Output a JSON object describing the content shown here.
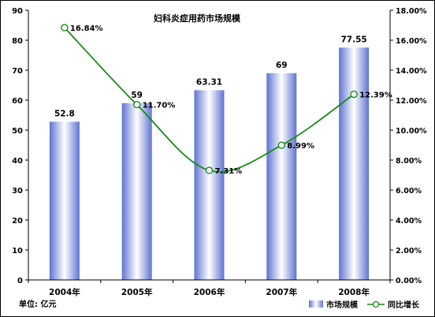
{
  "chart_data": {
    "type": "bar",
    "title": "妇科炎症用药市场规模",
    "unit_label": "单位: 亿元",
    "categories": [
      "2004年",
      "2005年",
      "2006年",
      "2007年",
      "2008年"
    ],
    "series": [
      {
        "name": "市场规模",
        "type": "bar",
        "axis": "left",
        "values": [
          52.8,
          59,
          63.31,
          69,
          77.55
        ],
        "labels": [
          "52.8",
          "59",
          "63.31",
          "69",
          "77.55"
        ]
      },
      {
        "name": "同比增长",
        "type": "line",
        "axis": "right",
        "values": [
          16.84,
          11.7,
          7.31,
          8.99,
          12.39
        ],
        "labels": [
          "16.84%",
          "11.70%",
          "7.31%",
          "8.99%",
          "12.39%"
        ]
      }
    ],
    "y_left": {
      "min": 0,
      "max": 90,
      "step": 10,
      "ticks": [
        "0",
        "10",
        "20",
        "30",
        "40",
        "50",
        "60",
        "70",
        "80",
        "90"
      ]
    },
    "y_right": {
      "min": 0,
      "max": 18,
      "step": 2,
      "ticks": [
        "0.00%",
        "2.00%",
        "4.00%",
        "6.00%",
        "8.00%",
        "10.00%",
        "12.00%",
        "14.00%",
        "16.00%",
        "18.00%"
      ]
    },
    "grid": false,
    "legend_position": "bottom-right",
    "colors": {
      "bar_edge": "#6a7fd6",
      "bar_center": "#ffffff",
      "line": "#1a8a1a",
      "marker_fill": "#ffffff",
      "axis": "#000000"
    }
  }
}
